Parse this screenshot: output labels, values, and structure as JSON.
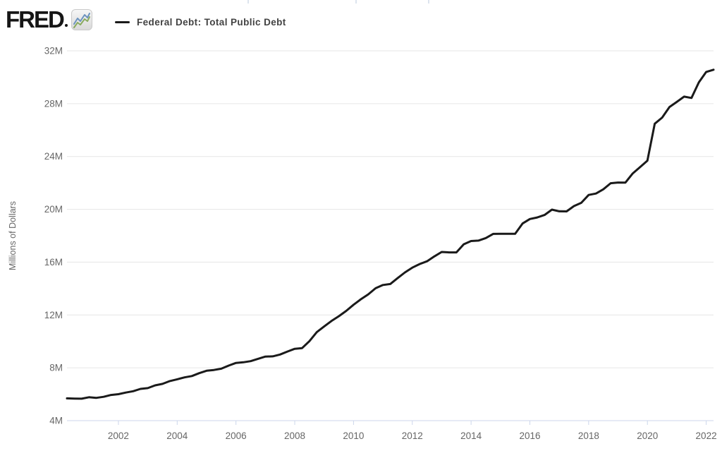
{
  "header": {
    "logo_text": "FRED",
    "logo_icon": "fred-sparkline-icon",
    "legend": {
      "series_label": "Federal Debt: Total Public Debt",
      "dash_color": "#1a1a1a"
    }
  },
  "colors": {
    "series_line": "#1a1a1a",
    "gridline": "#e6e6e6",
    "axis_line": "#ccd6eb",
    "tick": "#ccd6eb",
    "axis_label": "#666666",
    "logo_text": "#161616",
    "logo_icon_blue": "#6d94bf",
    "logo_icon_green": "#8aab60",
    "background": "#ffffff"
  },
  "chart_data": {
    "type": "line",
    "title": "Federal Debt: Total Public Debt",
    "xlabel": "",
    "ylabel": "Millions of Dollars",
    "legend_position": "top-left",
    "grid": "horizontal",
    "xlim": [
      2000.25,
      2022.25
    ],
    "ylim": [
      4000000,
      32000000
    ],
    "x_ticks": [
      {
        "value": 2002,
        "label": "2002"
      },
      {
        "value": 2004,
        "label": "2004"
      },
      {
        "value": 2006,
        "label": "2006"
      },
      {
        "value": 2008,
        "label": "2008"
      },
      {
        "value": 2010,
        "label": "2010"
      },
      {
        "value": 2012,
        "label": "2012"
      },
      {
        "value": 2014,
        "label": "2014"
      },
      {
        "value": 2016,
        "label": "2016"
      },
      {
        "value": 2018,
        "label": "2018"
      },
      {
        "value": 2020,
        "label": "2020"
      },
      {
        "value": 2022,
        "label": "2022"
      }
    ],
    "y_ticks": [
      {
        "value": 4000000,
        "label": "4M"
      },
      {
        "value": 8000000,
        "label": "8M"
      },
      {
        "value": 12000000,
        "label": "12M"
      },
      {
        "value": 16000000,
        "label": "16M"
      },
      {
        "value": 20000000,
        "label": "20M"
      },
      {
        "value": 24000000,
        "label": "24M"
      },
      {
        "value": 28000000,
        "label": "28M"
      },
      {
        "value": 32000000,
        "label": "32M"
      }
    ],
    "series": [
      {
        "name": "Federal Debt: Total Public Debt",
        "units": "Millions of Dollars",
        "frequency": "Quarterly",
        "dates": [
          "2000-04-01",
          "2000-07-01",
          "2000-10-01",
          "2001-01-01",
          "2001-04-01",
          "2001-07-01",
          "2001-10-01",
          "2002-01-01",
          "2002-04-01",
          "2002-07-01",
          "2002-10-01",
          "2003-01-01",
          "2003-04-01",
          "2003-07-01",
          "2003-10-01",
          "2004-01-01",
          "2004-04-01",
          "2004-07-01",
          "2004-10-01",
          "2005-01-01",
          "2005-04-01",
          "2005-07-01",
          "2005-10-01",
          "2006-01-01",
          "2006-04-01",
          "2006-07-01",
          "2006-10-01",
          "2007-01-01",
          "2007-04-01",
          "2007-07-01",
          "2007-10-01",
          "2008-01-01",
          "2008-04-01",
          "2008-07-01",
          "2008-10-01",
          "2009-01-01",
          "2009-04-01",
          "2009-07-01",
          "2009-10-01",
          "2010-01-01",
          "2010-04-01",
          "2010-07-01",
          "2010-10-01",
          "2011-01-01",
          "2011-04-01",
          "2011-07-01",
          "2011-10-01",
          "2012-01-01",
          "2012-04-01",
          "2012-07-01",
          "2012-10-01",
          "2013-01-01",
          "2013-04-01",
          "2013-07-01",
          "2013-10-01",
          "2014-01-01",
          "2014-04-01",
          "2014-07-01",
          "2014-10-01",
          "2015-01-01",
          "2015-04-01",
          "2015-07-01",
          "2015-10-01",
          "2016-01-01",
          "2016-04-01",
          "2016-07-01",
          "2016-10-01",
          "2017-01-01",
          "2017-04-01",
          "2017-07-01",
          "2017-10-01",
          "2018-01-01",
          "2018-04-01",
          "2018-07-01",
          "2018-10-01",
          "2019-01-01",
          "2019-04-01",
          "2019-07-01",
          "2019-10-01",
          "2020-01-01",
          "2020-04-01",
          "2020-07-01",
          "2020-10-01",
          "2021-01-01",
          "2021-04-01",
          "2021-07-01",
          "2021-10-01",
          "2022-01-01",
          "2022-04-01"
        ],
        "values": [
          5685938,
          5674195,
          5662216,
          5773740,
          5726815,
          5807463,
          5943439,
          6006032,
          6126469,
          6228236,
          6405707,
          6460776,
          6670121,
          6783231,
          6997964,
          7131068,
          7274340,
          7379053,
          7596143,
          7776939,
          7836496,
          7932710,
          8170424,
          8371156,
          8420042,
          8506974,
          8680224,
          8849665,
          8867999,
          9007653,
          9229172,
          9437593,
          9492006,
          10024725,
          10699805,
          11126941,
          11545275,
          11909829,
          12311350,
          12773123,
          13191622,
          13561623,
          14025215,
          14270115,
          14343088,
          14790340,
          15222940,
          15582078,
          15855500,
          16066241,
          16432730,
          16771378,
          16738184,
          16738650,
          17351971,
          17601227,
          17632606,
          17824071,
          18141444,
          18152056,
          18151998,
          18150618,
          18922179,
          19264939,
          19381591,
          19573445,
          19976827,
          19846420,
          19844554,
          20244900,
          20492747,
          21089643,
          21195070,
          21516058,
          21974096,
          22027880,
          22023544,
          22719402,
          23201380,
          23686911,
          26477561,
          26945391,
          27747798,
          28132570,
          28529436,
          28428919,
          29617215,
          30400690,
          30568581
        ]
      }
    ]
  }
}
